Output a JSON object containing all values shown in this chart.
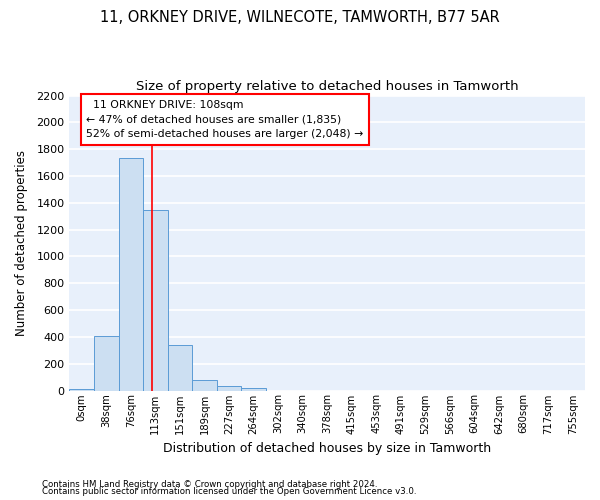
{
  "title1": "11, ORKNEY DRIVE, WILNECOTE, TAMWORTH, B77 5AR",
  "title2": "Size of property relative to detached houses in Tamworth",
  "xlabel": "Distribution of detached houses by size in Tamworth",
  "ylabel": "Number of detached properties",
  "footer1": "Contains HM Land Registry data © Crown copyright and database right 2024.",
  "footer2": "Contains public sector information licensed under the Open Government Licence v3.0.",
  "bar_labels": [
    "0sqm",
    "38sqm",
    "76sqm",
    "113sqm",
    "151sqm",
    "189sqm",
    "227sqm",
    "264sqm",
    "302sqm",
    "340sqm",
    "378sqm",
    "415sqm",
    "453sqm",
    "491sqm",
    "529sqm",
    "566sqm",
    "604sqm",
    "642sqm",
    "680sqm",
    "717sqm",
    "755sqm"
  ],
  "bar_values": [
    15,
    410,
    1735,
    1345,
    340,
    75,
    30,
    20,
    0,
    0,
    0,
    0,
    0,
    0,
    0,
    0,
    0,
    0,
    0,
    0,
    0
  ],
  "bar_color": "#ccdff2",
  "bar_edge_color": "#5b9bd5",
  "ylim": [
    0,
    2200
  ],
  "yticks": [
    0,
    200,
    400,
    600,
    800,
    1000,
    1200,
    1400,
    1600,
    1800,
    2000,
    2200
  ],
  "vline_x": 2.87,
  "vline_color": "red",
  "annotation_text": "  11 ORKNEY DRIVE: 108sqm\n← 47% of detached houses are smaller (1,835)\n52% of semi-detached houses are larger (2,048) →",
  "bg_color": "#e8f0fb",
  "grid_color": "#ffffff",
  "title_fontsize": 10.5,
  "subtitle_fontsize": 9.5,
  "annot_fontsize": 7.8
}
